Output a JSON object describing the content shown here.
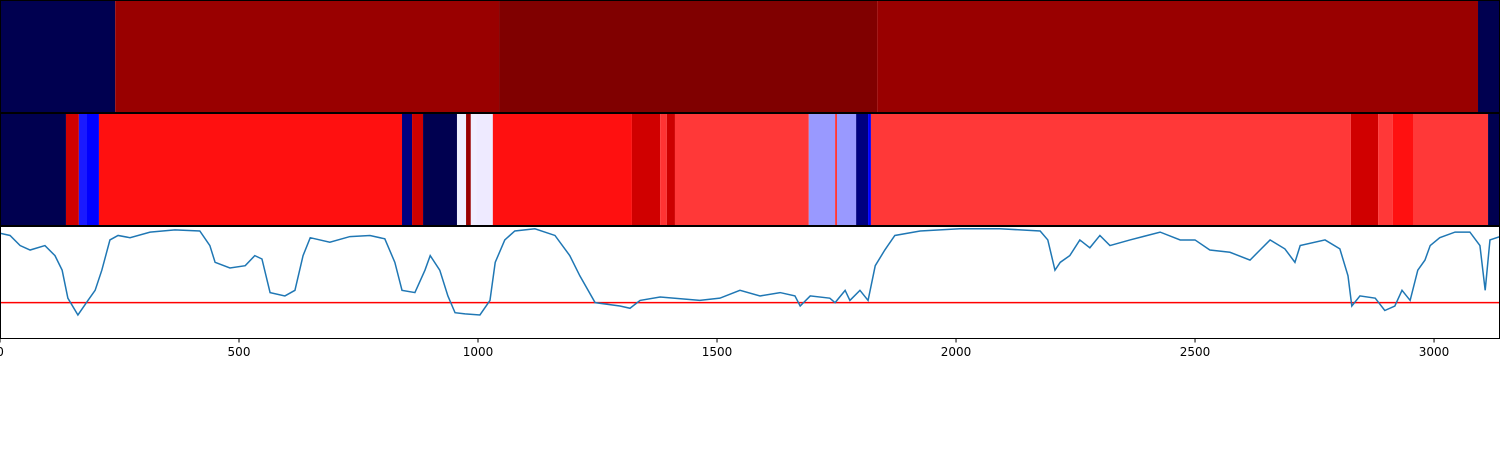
{
  "chart_data": [
    {
      "type": "strip",
      "xlim": [
        0,
        3138
      ],
      "edges": [
        0,
        241,
        1044,
        1835,
        3092,
        3138
      ],
      "colors": [
        "#000050",
        "#990000",
        "#800000",
        "#990000",
        "#000050"
      ]
    },
    {
      "type": "strip",
      "xlim": [
        0,
        3138
      ],
      "edges": [
        0,
        138,
        165,
        182,
        207,
        841,
        862,
        885,
        956,
        975,
        985,
        996,
        1031,
        1322,
        1381,
        1395,
        1412,
        1692,
        1747,
        1751,
        1791,
        1816,
        1822,
        2826,
        2883,
        2914,
        2956,
        3113,
        3138
      ],
      "colors": [
        "#000050",
        "#d00000",
        "#1a1aff",
        "#0000ff",
        "#ff1010",
        "#000080",
        "#cc0000",
        "#000050",
        "#f0f0ff",
        "#990000",
        "#f0eeff",
        "#eeeaff",
        "#ff1010",
        "#d00000",
        "#ff3333",
        "#cc0000",
        "#ff3838",
        "#9999ff",
        "#ff3838",
        "#9999ff",
        "#000080",
        "#0000ff",
        "#ff3838",
        "#d00000",
        "#ff3838",
        "#ff1010",
        "#ff3838",
        "#000050"
      ]
    },
    {
      "type": "line",
      "xlim": [
        0,
        3138
      ],
      "ylim": [
        0,
        1
      ],
      "xticks": [
        0,
        500,
        1000,
        1500,
        2000,
        2500,
        3000
      ],
      "color": "#1f77b4",
      "hline": 0.32,
      "hline_color": "#ff0000",
      "x": [
        0,
        21,
        42,
        63,
        94,
        115,
        130,
        142,
        163,
        184,
        199,
        213,
        230,
        247,
        272,
        314,
        366,
        418,
        439,
        450,
        481,
        513,
        533,
        548,
        565,
        596,
        617,
        634,
        649,
        690,
        732,
        774,
        805,
        826,
        841,
        868,
        889,
        900,
        920,
        937,
        952,
        973,
        1004,
        1025,
        1036,
        1056,
        1077,
        1119,
        1161,
        1192,
        1213,
        1245,
        1297,
        1318,
        1339,
        1381,
        1464,
        1506,
        1548,
        1590,
        1632,
        1663,
        1674,
        1695,
        1736,
        1747,
        1768,
        1778,
        1799,
        1816,
        1831,
        1851,
        1872,
        1925,
        2008,
        2092,
        2176,
        2192,
        2207,
        2218,
        2238,
        2259,
        2280,
        2301,
        2322,
        2364,
        2427,
        2469,
        2500,
        2531,
        2573,
        2615,
        2636,
        2657,
        2688,
        2709,
        2720,
        2772,
        2803,
        2820,
        2828,
        2845,
        2877,
        2897,
        2918,
        2933,
        2950,
        2966,
        2981,
        2992,
        3012,
        3044,
        3075,
        3096,
        3107,
        3117,
        3138
      ],
      "values": [
        0.94,
        0.92,
        0.83,
        0.79,
        0.83,
        0.74,
        0.61,
        0.36,
        0.21,
        0.34,
        0.43,
        0.61,
        0.88,
        0.92,
        0.9,
        0.95,
        0.97,
        0.96,
        0.83,
        0.68,
        0.63,
        0.65,
        0.74,
        0.71,
        0.41,
        0.38,
        0.43,
        0.74,
        0.9,
        0.86,
        0.91,
        0.92,
        0.89,
        0.68,
        0.43,
        0.41,
        0.61,
        0.74,
        0.61,
        0.38,
        0.23,
        0.22,
        0.21,
        0.34,
        0.68,
        0.88,
        0.96,
        0.98,
        0.92,
        0.74,
        0.56,
        0.32,
        0.29,
        0.27,
        0.34,
        0.37,
        0.34,
        0.36,
        0.43,
        0.38,
        0.41,
        0.38,
        0.29,
        0.38,
        0.36,
        0.32,
        0.43,
        0.34,
        0.43,
        0.34,
        0.65,
        0.79,
        0.92,
        0.96,
        0.98,
        0.98,
        0.96,
        0.88,
        0.61,
        0.68,
        0.74,
        0.88,
        0.81,
        0.92,
        0.83,
        0.88,
        0.95,
        0.88,
        0.88,
        0.79,
        0.77,
        0.7,
        0.79,
        0.88,
        0.8,
        0.68,
        0.83,
        0.88,
        0.8,
        0.56,
        0.29,
        0.38,
        0.36,
        0.25,
        0.29,
        0.43,
        0.34,
        0.61,
        0.7,
        0.83,
        0.9,
        0.95,
        0.95,
        0.83,
        0.43,
        0.88,
        0.91
      ]
    }
  ]
}
